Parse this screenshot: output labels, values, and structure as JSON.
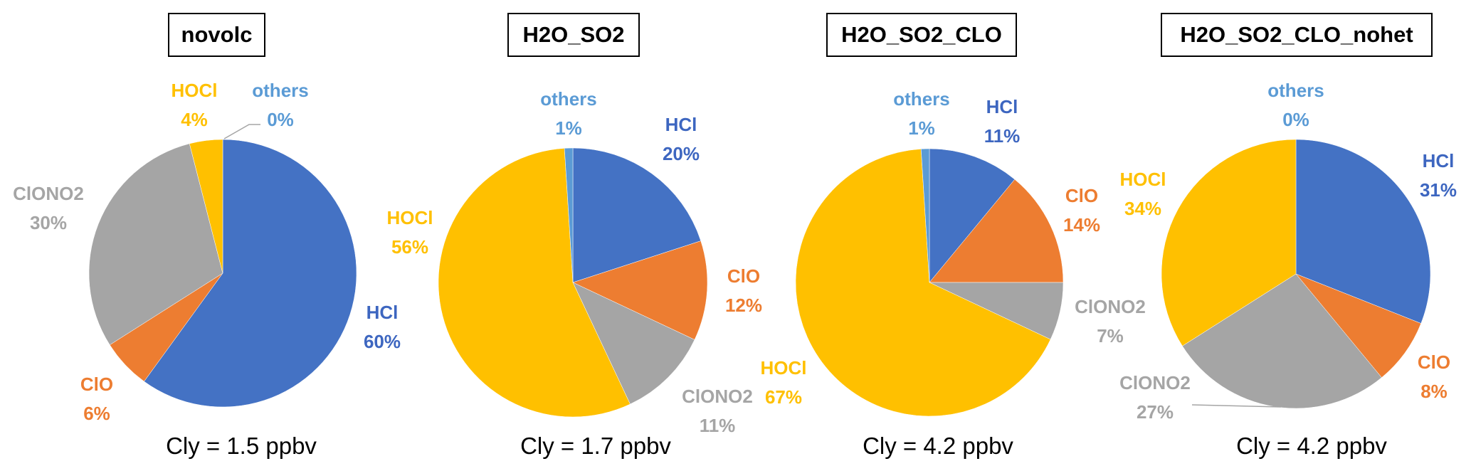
{
  "chart_data": [
    {
      "type": "pie",
      "title": "novolc",
      "caption": "Cly = 1.5 ppbv",
      "categories": [
        "HCl",
        "ClO",
        "ClONO2",
        "HOCl",
        "others"
      ],
      "values": [
        60,
        6,
        30,
        4,
        0
      ],
      "labels": [
        "60%",
        "6%",
        "30%",
        "4%",
        "0%"
      ]
    },
    {
      "type": "pie",
      "title": "H2O_SO2",
      "caption": "Cly = 1.7 ppbv",
      "categories": [
        "HCl",
        "ClO",
        "ClONO2",
        "HOCl",
        "others"
      ],
      "values": [
        20,
        12,
        11,
        56,
        1
      ],
      "labels": [
        "20%",
        "12%",
        "11%",
        "56%",
        "1%"
      ]
    },
    {
      "type": "pie",
      "title": "H2O_SO2_CLO",
      "caption": "Cly = 4.2 ppbv",
      "categories": [
        "HCl",
        "ClO",
        "ClONO2",
        "HOCl",
        "others"
      ],
      "values": [
        11,
        14,
        7,
        67,
        1
      ],
      "labels": [
        "11%",
        "14%",
        "7%",
        "67%",
        "1%"
      ]
    },
    {
      "type": "pie",
      "title": "H2O_SO2_CLO_nohet",
      "caption": "Cly = 4.2 ppbv",
      "categories": [
        "HCl",
        "ClO",
        "ClONO2",
        "HOCl",
        "others"
      ],
      "values": [
        31,
        8,
        27,
        34,
        0
      ],
      "labels": [
        "31%",
        "8%",
        "27%",
        "34%",
        "0%"
      ]
    }
  ],
  "colors": {
    "HCl": "#4472C4",
    "ClO": "#ED7D31",
    "ClONO2": "#A5A5A5",
    "HOCl": "#FFC000",
    "others": "#5B9BD5"
  },
  "label_colors": {
    "HCl": "#3D66C0",
    "ClO": "#ED7D31",
    "ClONO2": "#A5A5A5",
    "HOCl": "#FFC000",
    "others": "#5B9BD5"
  },
  "start_angle": "12 o'clock, clockwise"
}
